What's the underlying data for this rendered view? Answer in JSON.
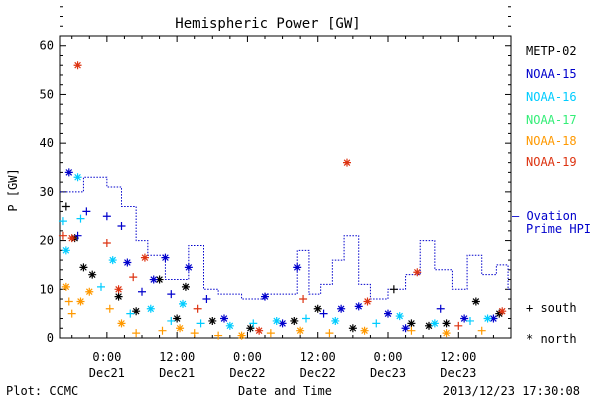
{
  "chart_data": {
    "type": "scatter",
    "title": "Hemispheric Power [GW]",
    "xlabel": "Date and Time",
    "ylabel": "P [GW]",
    "ylim": [
      0,
      62
    ],
    "xlim": [
      "2013-12-20 16:00",
      "2013-12-23 21:00"
    ],
    "yticks": [
      0,
      10,
      20,
      30,
      40,
      50,
      60
    ],
    "xticks": [
      {
        "at": "2013-12-21 00:00",
        "time": "0:00",
        "date": "Dec21"
      },
      {
        "at": "2013-12-21 12:00",
        "time": "12:00",
        "date": "Dec21"
      },
      {
        "at": "2013-12-22 00:00",
        "time": "0:00",
        "date": "Dec22"
      },
      {
        "at": "2013-12-22 12:00",
        "time": "12:00",
        "date": "Dec22"
      },
      {
        "at": "2013-12-23 00:00",
        "time": "0:00",
        "date": "Dec23"
      },
      {
        "at": "2013-12-23 12:00",
        "time": "12:00",
        "date": "Dec23"
      }
    ],
    "legend_position": "right",
    "series": [
      {
        "name": "METP-02",
        "color": "#000000",
        "marker": "mixed",
        "points": [
          {
            "x": "2013-12-20 17:00",
            "y": 27,
            "m": "plus"
          },
          {
            "x": "2013-12-20 18:30",
            "y": 20.5,
            "m": "star"
          },
          {
            "x": "2013-12-20 20:00",
            "y": 14.5,
            "m": "star"
          },
          {
            "x": "2013-12-20 21:30",
            "y": 13,
            "m": "star"
          },
          {
            "x": "2013-12-21 02:00",
            "y": 8.5,
            "m": "star"
          },
          {
            "x": "2013-12-21 05:00",
            "y": 5.5,
            "m": "star"
          },
          {
            "x": "2013-12-21 09:00",
            "y": 12,
            "m": "star"
          },
          {
            "x": "2013-12-21 12:00",
            "y": 4,
            "m": "star"
          },
          {
            "x": "2013-12-21 13:30",
            "y": 10.5,
            "m": "star"
          },
          {
            "x": "2013-12-21 18:00",
            "y": 3.5,
            "m": "star"
          },
          {
            "x": "2013-12-22 00:30",
            "y": 2,
            "m": "star"
          },
          {
            "x": "2013-12-22 08:00",
            "y": 3.5,
            "m": "star"
          },
          {
            "x": "2013-12-22 12:00",
            "y": 6,
            "m": "star"
          },
          {
            "x": "2013-12-22 18:00",
            "y": 2,
            "m": "star"
          },
          {
            "x": "2013-12-23 01:00",
            "y": 10,
            "m": "plus"
          },
          {
            "x": "2013-12-23 04:00",
            "y": 3,
            "m": "star"
          },
          {
            "x": "2013-12-23 07:00",
            "y": 2.5,
            "m": "star"
          },
          {
            "x": "2013-12-23 10:00",
            "y": 3,
            "m": "star"
          },
          {
            "x": "2013-12-23 15:00",
            "y": 7.5,
            "m": "star"
          },
          {
            "x": "2013-12-23 19:00",
            "y": 5,
            "m": "star"
          }
        ]
      },
      {
        "name": "NOAA-15",
        "color": "#0000cc",
        "marker": "mixed",
        "points": [
          {
            "x": "2013-12-20 17:30",
            "y": 34,
            "m": "star"
          },
          {
            "x": "2013-12-20 19:00",
            "y": 21,
            "m": "plus"
          },
          {
            "x": "2013-12-20 20:30",
            "y": 26,
            "m": "plus"
          },
          {
            "x": "2013-12-21 00:00",
            "y": 25,
            "m": "plus"
          },
          {
            "x": "2013-12-21 02:30",
            "y": 23,
            "m": "plus"
          },
          {
            "x": "2013-12-21 03:30",
            "y": 15.5,
            "m": "star"
          },
          {
            "x": "2013-12-21 06:00",
            "y": 9.5,
            "m": "plus"
          },
          {
            "x": "2013-12-21 08:00",
            "y": 12,
            "m": "star"
          },
          {
            "x": "2013-12-21 10:00",
            "y": 16.5,
            "m": "star"
          },
          {
            "x": "2013-12-21 11:00",
            "y": 9,
            "m": "plus"
          },
          {
            "x": "2013-12-21 14:00",
            "y": 14.5,
            "m": "star"
          },
          {
            "x": "2013-12-21 17:00",
            "y": 8,
            "m": "plus"
          },
          {
            "x": "2013-12-21 20:00",
            "y": 4,
            "m": "star"
          },
          {
            "x": "2013-12-22 03:00",
            "y": 8.5,
            "m": "star"
          },
          {
            "x": "2013-12-22 06:00",
            "y": 3,
            "m": "star"
          },
          {
            "x": "2013-12-22 08:30",
            "y": 14.5,
            "m": "star"
          },
          {
            "x": "2013-12-22 13:00",
            "y": 5,
            "m": "plus"
          },
          {
            "x": "2013-12-22 16:00",
            "y": 6,
            "m": "star"
          },
          {
            "x": "2013-12-22 19:00",
            "y": 6.5,
            "m": "star"
          },
          {
            "x": "2013-12-23 00:00",
            "y": 5,
            "m": "star"
          },
          {
            "x": "2013-12-23 03:00",
            "y": 2,
            "m": "star"
          },
          {
            "x": "2013-12-23 09:00",
            "y": 6,
            "m": "plus"
          },
          {
            "x": "2013-12-23 13:00",
            "y": 4,
            "m": "star"
          },
          {
            "x": "2013-12-23 18:00",
            "y": 4,
            "m": "star"
          }
        ]
      },
      {
        "name": "NOAA-16",
        "color": "#00ccff",
        "marker": "mixed",
        "points": [
          {
            "x": "2013-12-20 16:30",
            "y": 24,
            "m": "plus"
          },
          {
            "x": "2013-12-20 17:00",
            "y": 18,
            "m": "star"
          },
          {
            "x": "2013-12-20 19:00",
            "y": 33,
            "m": "star"
          },
          {
            "x": "2013-12-20 19:30",
            "y": 24.5,
            "m": "plus"
          },
          {
            "x": "2013-12-20 23:00",
            "y": 10.5,
            "m": "plus"
          },
          {
            "x": "2013-12-21 01:00",
            "y": 16,
            "m": "star"
          },
          {
            "x": "2013-12-21 04:00",
            "y": 5,
            "m": "plus"
          },
          {
            "x": "2013-12-21 07:30",
            "y": 6,
            "m": "star"
          },
          {
            "x": "2013-12-21 11:00",
            "y": 3.5,
            "m": "plus"
          },
          {
            "x": "2013-12-21 13:00",
            "y": 7,
            "m": "star"
          },
          {
            "x": "2013-12-21 16:00",
            "y": 3,
            "m": "plus"
          },
          {
            "x": "2013-12-21 21:00",
            "y": 2.5,
            "m": "star"
          },
          {
            "x": "2013-12-22 01:00",
            "y": 3,
            "m": "plus"
          },
          {
            "x": "2013-12-22 05:00",
            "y": 3.5,
            "m": "star"
          },
          {
            "x": "2013-12-22 10:00",
            "y": 4,
            "m": "plus"
          },
          {
            "x": "2013-12-22 15:00",
            "y": 3.5,
            "m": "star"
          },
          {
            "x": "2013-12-22 22:00",
            "y": 3,
            "m": "plus"
          },
          {
            "x": "2013-12-23 02:00",
            "y": 4.5,
            "m": "star"
          },
          {
            "x": "2013-12-23 08:00",
            "y": 3,
            "m": "star"
          },
          {
            "x": "2013-12-23 14:00",
            "y": 3.5,
            "m": "plus"
          },
          {
            "x": "2013-12-23 17:00",
            "y": 4,
            "m": "star"
          }
        ]
      },
      {
        "name": "NOAA-17",
        "color": "#33ee77",
        "marker": "mixed",
        "points": []
      },
      {
        "name": "NOAA-18",
        "color": "#ff9900",
        "marker": "mixed",
        "points": [
          {
            "x": "2013-12-20 17:00",
            "y": 10.5,
            "m": "star"
          },
          {
            "x": "2013-12-20 17:30",
            "y": 7.5,
            "m": "plus"
          },
          {
            "x": "2013-12-20 18:00",
            "y": 5,
            "m": "plus"
          },
          {
            "x": "2013-12-20 19:30",
            "y": 7.5,
            "m": "star"
          },
          {
            "x": "2013-12-20 21:00",
            "y": 9.5,
            "m": "star"
          },
          {
            "x": "2013-12-21 00:30",
            "y": 6,
            "m": "plus"
          },
          {
            "x": "2013-12-21 02:30",
            "y": 3,
            "m": "star"
          },
          {
            "x": "2013-12-21 05:00",
            "y": 1,
            "m": "plus"
          },
          {
            "x": "2013-12-21 09:30",
            "y": 1.5,
            "m": "plus"
          },
          {
            "x": "2013-12-21 12:30",
            "y": 2,
            "m": "star"
          },
          {
            "x": "2013-12-21 15:00",
            "y": 1,
            "m": "plus"
          },
          {
            "x": "2013-12-21 19:00",
            "y": 0.5,
            "m": "plus"
          },
          {
            "x": "2013-12-21 23:00",
            "y": 0.5,
            "m": "star"
          },
          {
            "x": "2013-12-22 04:00",
            "y": 1,
            "m": "plus"
          },
          {
            "x": "2013-12-22 09:00",
            "y": 1.5,
            "m": "star"
          },
          {
            "x": "2013-12-22 14:00",
            "y": 1,
            "m": "plus"
          },
          {
            "x": "2013-12-22 20:00",
            "y": 1.5,
            "m": "star"
          },
          {
            "x": "2013-12-23 04:00",
            "y": 1.5,
            "m": "plus"
          },
          {
            "x": "2013-12-23 10:00",
            "y": 1,
            "m": "star"
          },
          {
            "x": "2013-12-23 16:00",
            "y": 1.5,
            "m": "plus"
          }
        ]
      },
      {
        "name": "NOAA-19",
        "color": "#dd3311",
        "marker": "mixed",
        "points": [
          {
            "x": "2013-12-20 16:30",
            "y": 21,
            "m": "plus"
          },
          {
            "x": "2013-12-20 18:00",
            "y": 20.5,
            "m": "star"
          },
          {
            "x": "2013-12-20 19:00",
            "y": 56,
            "m": "star"
          },
          {
            "x": "2013-12-21 00:00",
            "y": 19.5,
            "m": "plus"
          },
          {
            "x": "2013-12-21 02:00",
            "y": 10,
            "m": "star"
          },
          {
            "x": "2013-12-21 04:30",
            "y": 12.5,
            "m": "plus"
          },
          {
            "x": "2013-12-21 06:30",
            "y": 16.5,
            "m": "star"
          },
          {
            "x": "2013-12-21 15:30",
            "y": 6,
            "m": "plus"
          },
          {
            "x": "2013-12-22 02:00",
            "y": 1.5,
            "m": "star"
          },
          {
            "x": "2013-12-22 09:30",
            "y": 8,
            "m": "plus"
          },
          {
            "x": "2013-12-22 17:00",
            "y": 36,
            "m": "star"
          },
          {
            "x": "2013-12-22 20:30",
            "y": 7.5,
            "m": "star"
          },
          {
            "x": "2013-12-23 05:00",
            "y": 13.5,
            "m": "star"
          },
          {
            "x": "2013-12-23 12:00",
            "y": 2.5,
            "m": "plus"
          },
          {
            "x": "2013-12-23 19:30",
            "y": 5.5,
            "m": "star"
          }
        ]
      }
    ],
    "ovation": {
      "name": "Ovation Prime HPI",
      "color": "#0000cc",
      "style": "dotted-step",
      "steps": [
        {
          "x": "2013-12-20 16:00",
          "y": 30
        },
        {
          "x": "2013-12-20 20:00",
          "y": 33
        },
        {
          "x": "2013-12-21 00:00",
          "y": 31
        },
        {
          "x": "2013-12-21 02:30",
          "y": 27
        },
        {
          "x": "2013-12-21 05:00",
          "y": 20
        },
        {
          "x": "2013-12-21 07:00",
          "y": 17
        },
        {
          "x": "2013-12-21 10:00",
          "y": 12
        },
        {
          "x": "2013-12-21 14:00",
          "y": 19
        },
        {
          "x": "2013-12-21 16:30",
          "y": 10
        },
        {
          "x": "2013-12-21 19:00",
          "y": 9
        },
        {
          "x": "2013-12-21 23:00",
          "y": 8
        },
        {
          "x": "2013-12-22 03:00",
          "y": 9
        },
        {
          "x": "2013-12-22 06:00",
          "y": 9
        },
        {
          "x": "2013-12-22 08:30",
          "y": 18
        },
        {
          "x": "2013-12-22 10:30",
          "y": 9
        },
        {
          "x": "2013-12-22 12:30",
          "y": 11
        },
        {
          "x": "2013-12-22 14:30",
          "y": 16
        },
        {
          "x": "2013-12-22 16:30",
          "y": 21
        },
        {
          "x": "2013-12-22 19:00",
          "y": 11
        },
        {
          "x": "2013-12-22 21:00",
          "y": 8
        },
        {
          "x": "2013-12-23 00:00",
          "y": 10
        },
        {
          "x": "2013-12-23 03:00",
          "y": 13
        },
        {
          "x": "2013-12-23 05:30",
          "y": 20
        },
        {
          "x": "2013-12-23 08:00",
          "y": 14
        },
        {
          "x": "2013-12-23 11:00",
          "y": 10
        },
        {
          "x": "2013-12-23 13:30",
          "y": 17
        },
        {
          "x": "2013-12-23 16:00",
          "y": 13
        },
        {
          "x": "2013-12-23 18:30",
          "y": 15
        },
        {
          "x": "2013-12-23 20:30",
          "y": 10
        }
      ]
    },
    "legend": {
      "entries": [
        "METP-02",
        "NOAA-15",
        "NOAA-16",
        "NOAA-17",
        "NOAA-18",
        "NOAA-19"
      ],
      "ovation_line1": "— Ovation",
      "ovation_line2": "Prime HPI",
      "south_label": "+ south",
      "north_label": "* north"
    },
    "footer": {
      "left": "Plot: CCMC",
      "center": "Date and Time",
      "right": "2013/12/23 17:30:08"
    }
  }
}
